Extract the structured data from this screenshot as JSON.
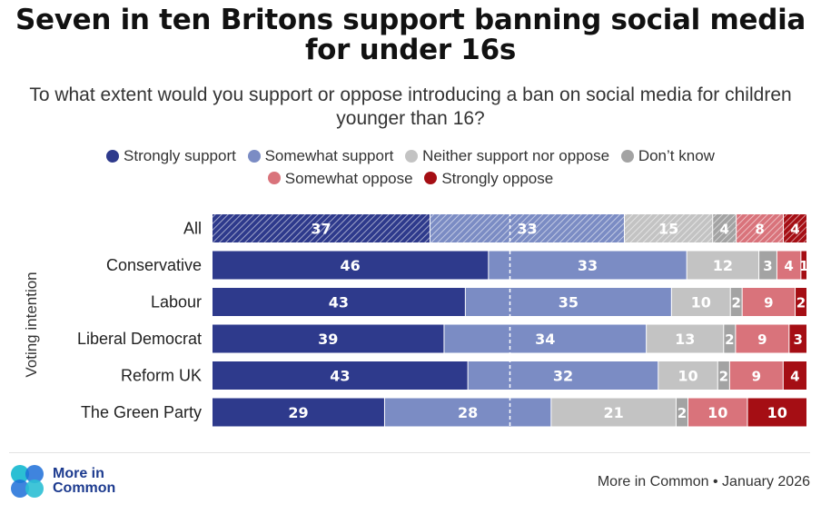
{
  "title": "Seven in ten Britons support banning social media for under 16s",
  "subtitle": "To what extent would you support or oppose introducing a ban on social media for children younger than 16?",
  "legend": [
    {
      "label": "Strongly support",
      "color": "#2e3a8c"
    },
    {
      "label": "Somewhat support",
      "color": "#7b8cc4"
    },
    {
      "label": "Neither support nor oppose",
      "color": "#c3c3c3"
    },
    {
      "label": "Don’t know",
      "color": "#a3a3a3"
    },
    {
      "label": "Somewhat oppose",
      "color": "#d9737b"
    },
    {
      "label": "Strongly oppose",
      "color": "#a50e14"
    }
  ],
  "footer": {
    "brand_line1": "More in",
    "brand_line2": "Common",
    "source": "More in Common • January 2026"
  },
  "chart_data": {
    "type": "bar",
    "orientation": "horizontal",
    "stacked": true,
    "ylabel": "Voting intention",
    "categories": [
      "All",
      "Conservative",
      "Labour",
      "Liberal Democrat",
      "Reform UK",
      "The Green Party"
    ],
    "hatched_category": "All",
    "series": [
      {
        "name": "Strongly support",
        "color": "#2e3a8c",
        "values": [
          37,
          46,
          43,
          39,
          43,
          29
        ]
      },
      {
        "name": "Somewhat support",
        "color": "#7b8cc4",
        "values": [
          33,
          33,
          35,
          34,
          32,
          28
        ]
      },
      {
        "name": "Neither support nor oppose",
        "color": "#c3c3c3",
        "values": [
          15,
          12,
          10,
          13,
          10,
          21
        ]
      },
      {
        "name": "Don’t know",
        "color": "#a3a3a3",
        "values": [
          4,
          3,
          2,
          2,
          2,
          2
        ]
      },
      {
        "name": "Somewhat oppose",
        "color": "#d9737b",
        "values": [
          8,
          4,
          9,
          9,
          9,
          10
        ]
      },
      {
        "name": "Strongly oppose",
        "color": "#a50e14",
        "values": [
          4,
          1,
          2,
          3,
          4,
          10
        ]
      }
    ],
    "reference_line": 50,
    "xlim": [
      0,
      100
    ]
  }
}
